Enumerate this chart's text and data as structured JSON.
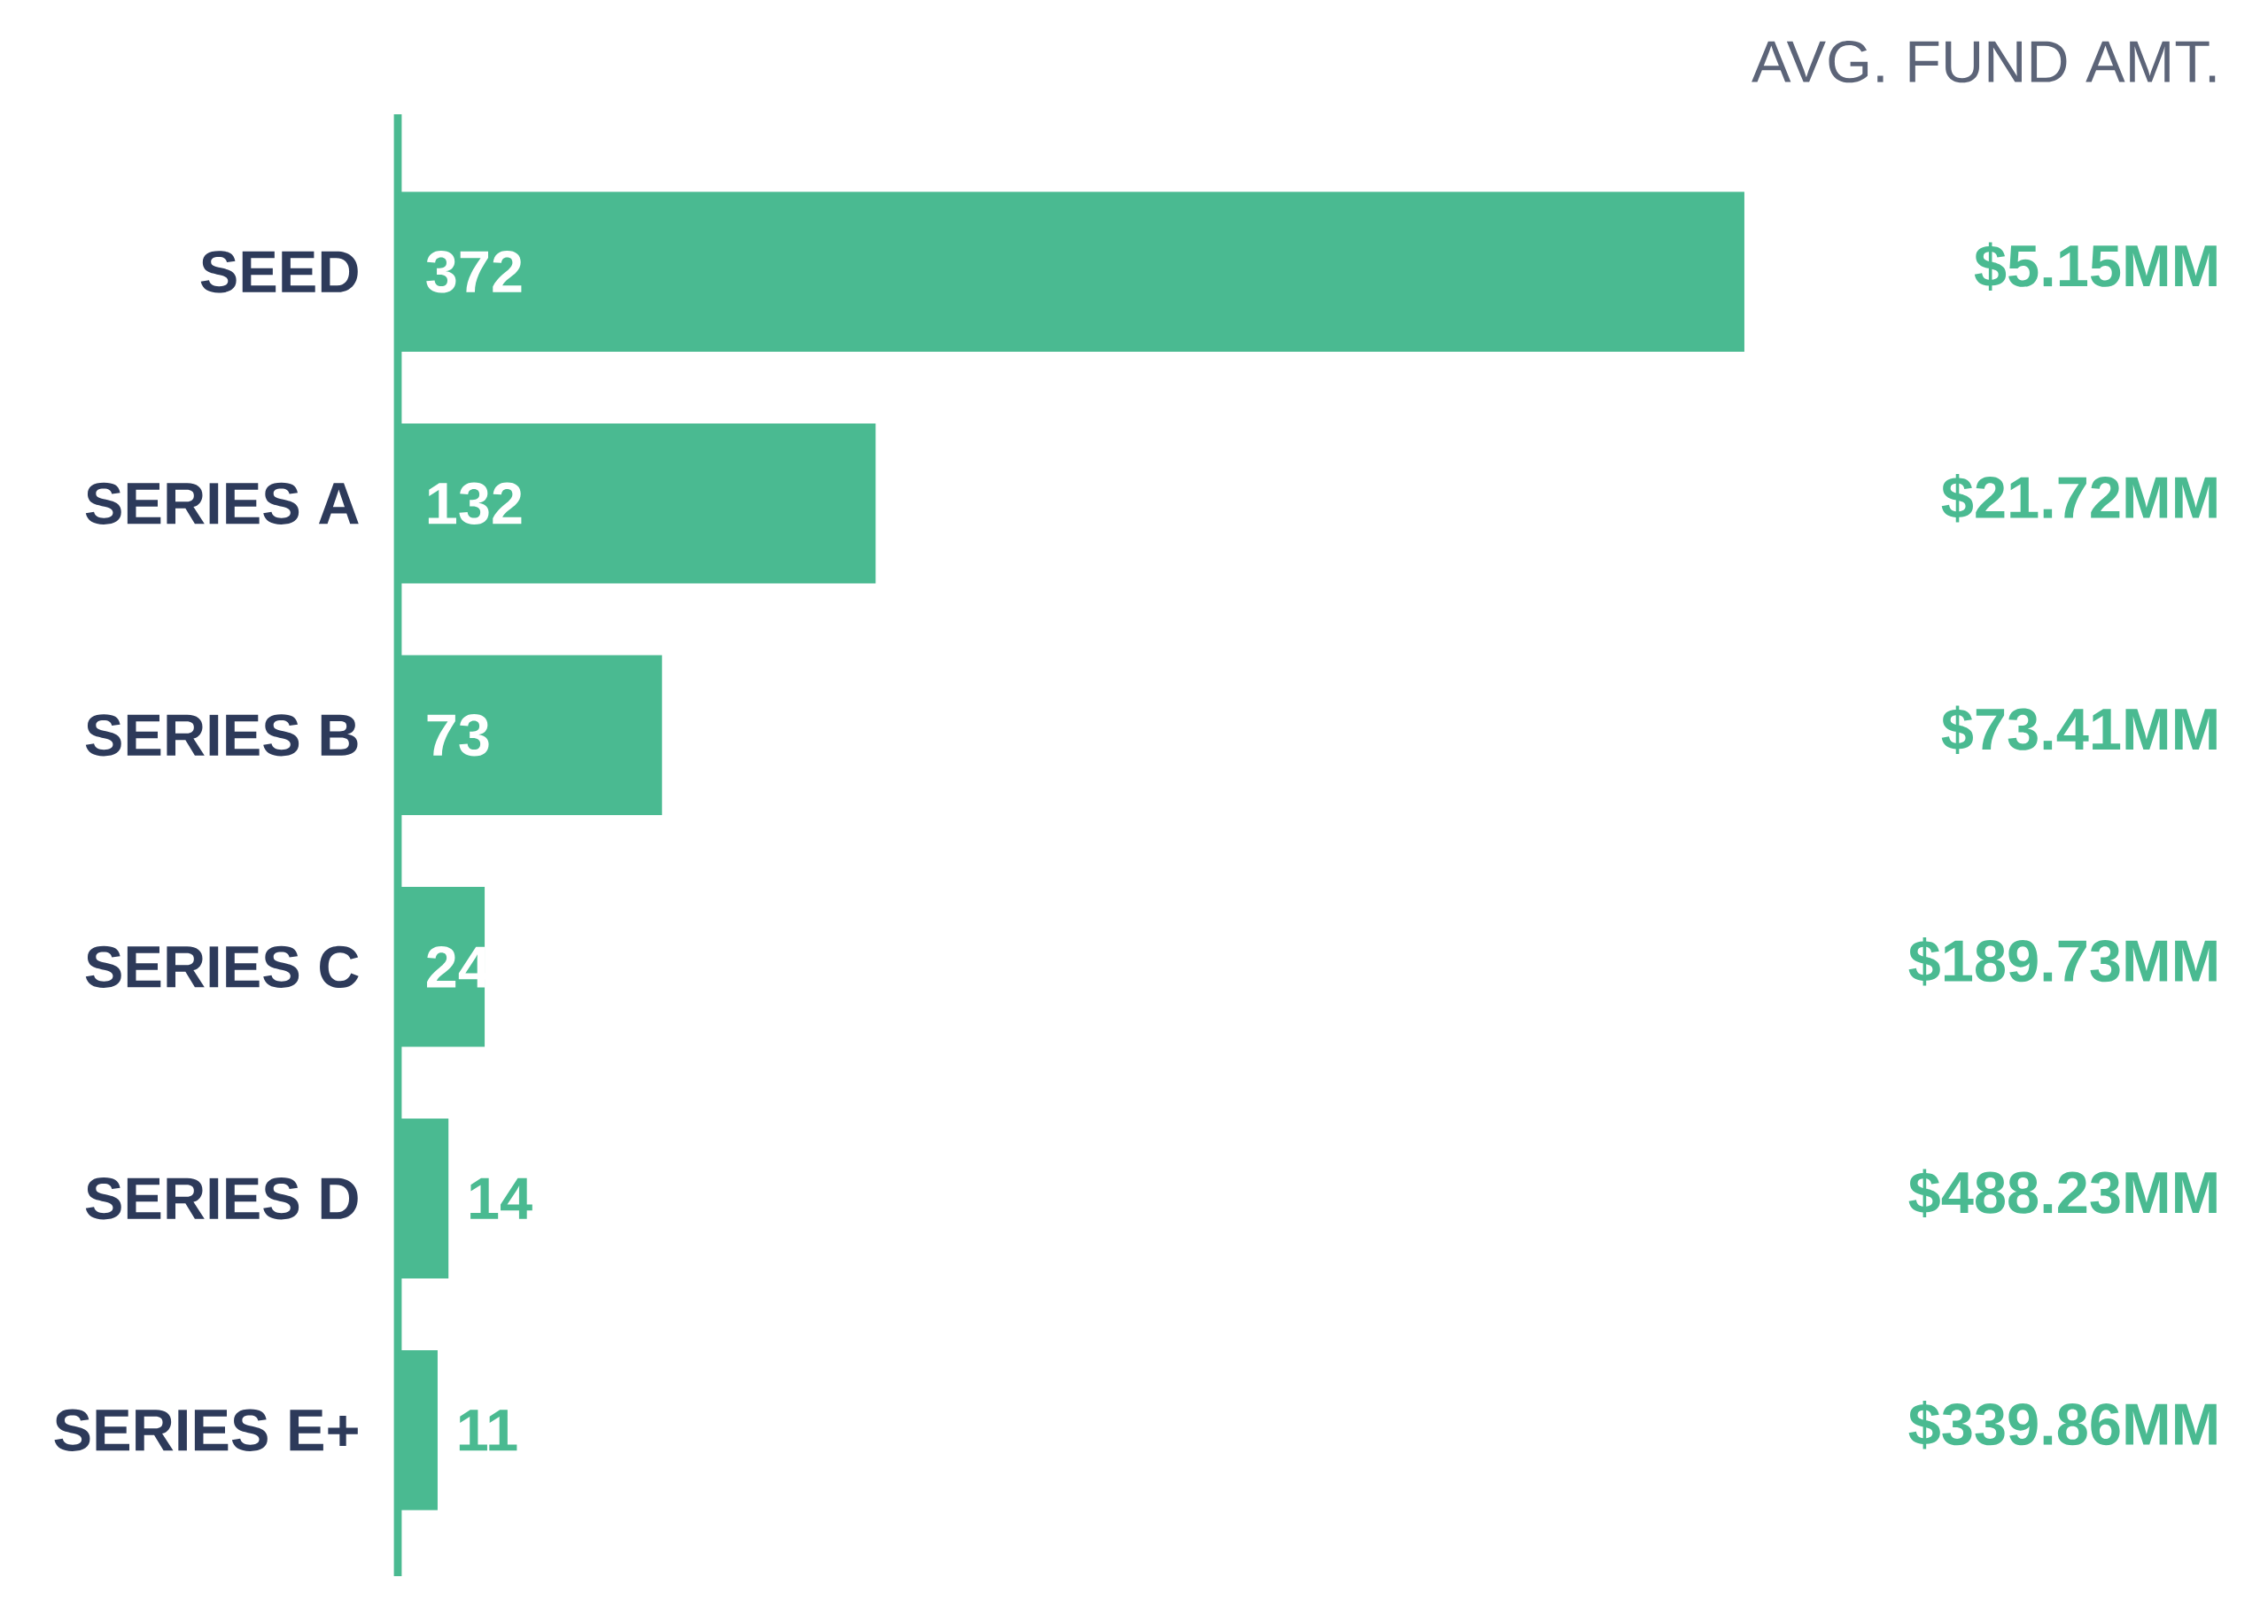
{
  "chart_data": {
    "type": "bar",
    "orientation": "horizontal",
    "categories": [
      "SEED",
      "SERIES A",
      "SERIES B",
      "SERIES C",
      "SERIES D",
      "SERIES E+"
    ],
    "values": [
      372,
      132,
      73,
      24,
      14,
      11
    ],
    "color": "#4aba91",
    "data_labels": true,
    "tick_labels": "y",
    "annotations": [
      "AVG. FUND AMT.",
      "$5.15MM",
      "$21.72MM",
      "$73.41MM",
      "$189.73MM",
      "$488.23MM",
      "$339.86MM"
    ]
  }
}
